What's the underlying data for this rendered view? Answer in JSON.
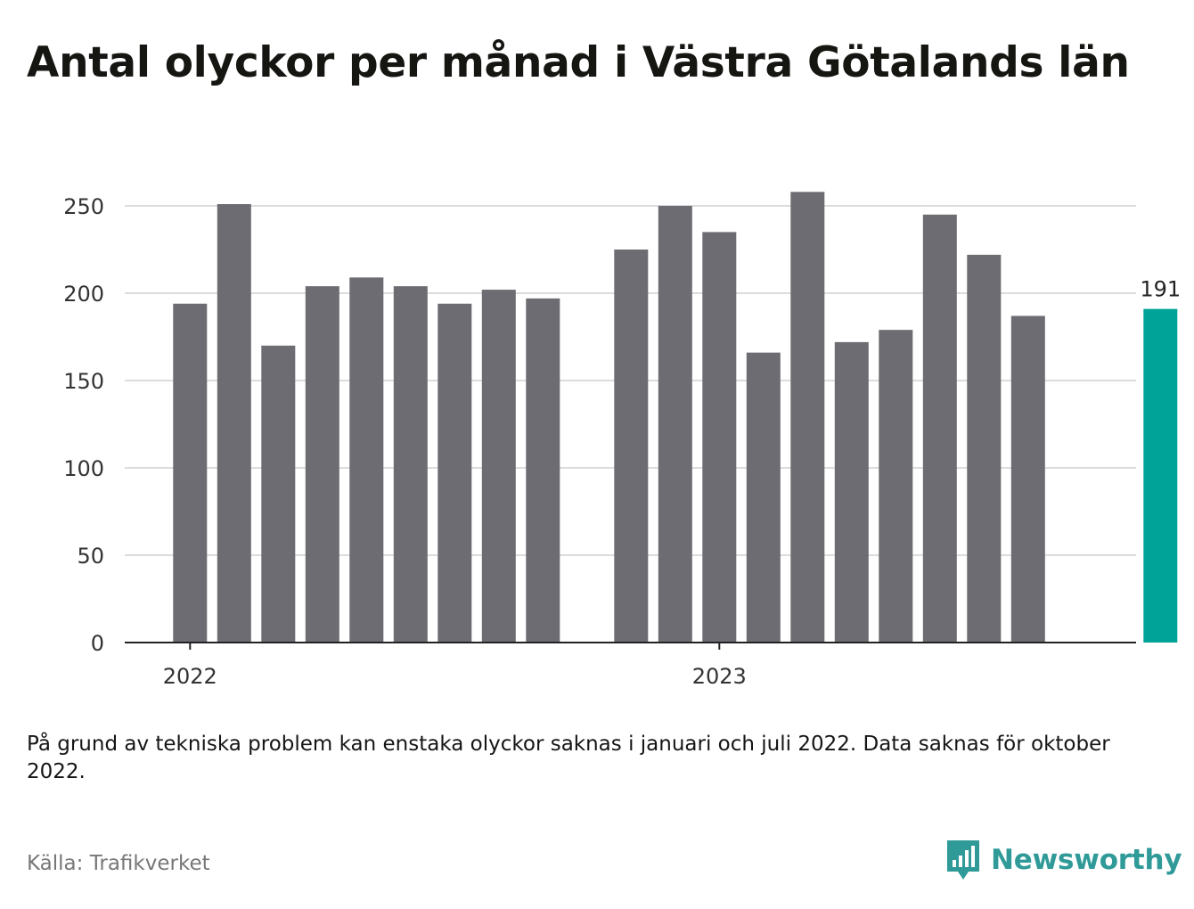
{
  "title": "Antal olyckor per månad i Västra Götalands län",
  "note": "På grund av tekniska problem kan enstaka olyckor saknas i januari och juli 2022. Data saknas för oktober 2022.",
  "source": "Källa: Trafikverket",
  "brand": {
    "name": "Newsworthy",
    "logo_icon": "bar-chart-speech-bubble-icon",
    "color": "#2f9a98"
  },
  "colors": {
    "bar": "#6d6c72",
    "highlight": "#00a398",
    "grid": "#dcdcdc",
    "axis": "#222222"
  },
  "chart_data": {
    "type": "bar",
    "title": "Antal olyckor per månad i Västra Götalands län",
    "xlabel": "",
    "ylabel": "",
    "ylim": [
      0,
      265
    ],
    "yticks": [
      0,
      50,
      100,
      150,
      200,
      250
    ],
    "grid": true,
    "year_labels": [
      {
        "label": "2022",
        "at_month": "2022-01"
      },
      {
        "label": "2023",
        "at_month": "2023-01"
      }
    ],
    "categories": [
      "2022-01",
      "2022-02",
      "2022-03",
      "2022-04",
      "2022-05",
      "2022-06",
      "2022-07",
      "2022-08",
      "2022-09",
      "2022-10",
      "2022-11",
      "2022-12",
      "2023-01",
      "2023-02",
      "2023-03",
      "2023-04",
      "2023-05",
      "2023-06",
      "2023-07",
      "2023-08",
      "2023-09",
      "2023-10",
      "2023-11"
    ],
    "values": [
      194,
      251,
      170,
      204,
      209,
      204,
      194,
      202,
      197,
      null,
      225,
      250,
      235,
      166,
      258,
      172,
      179,
      245,
      222,
      187,
      null,
      null,
      191
    ],
    "highlight": {
      "category": "2023-11",
      "value": 191,
      "label": "191"
    }
  }
}
